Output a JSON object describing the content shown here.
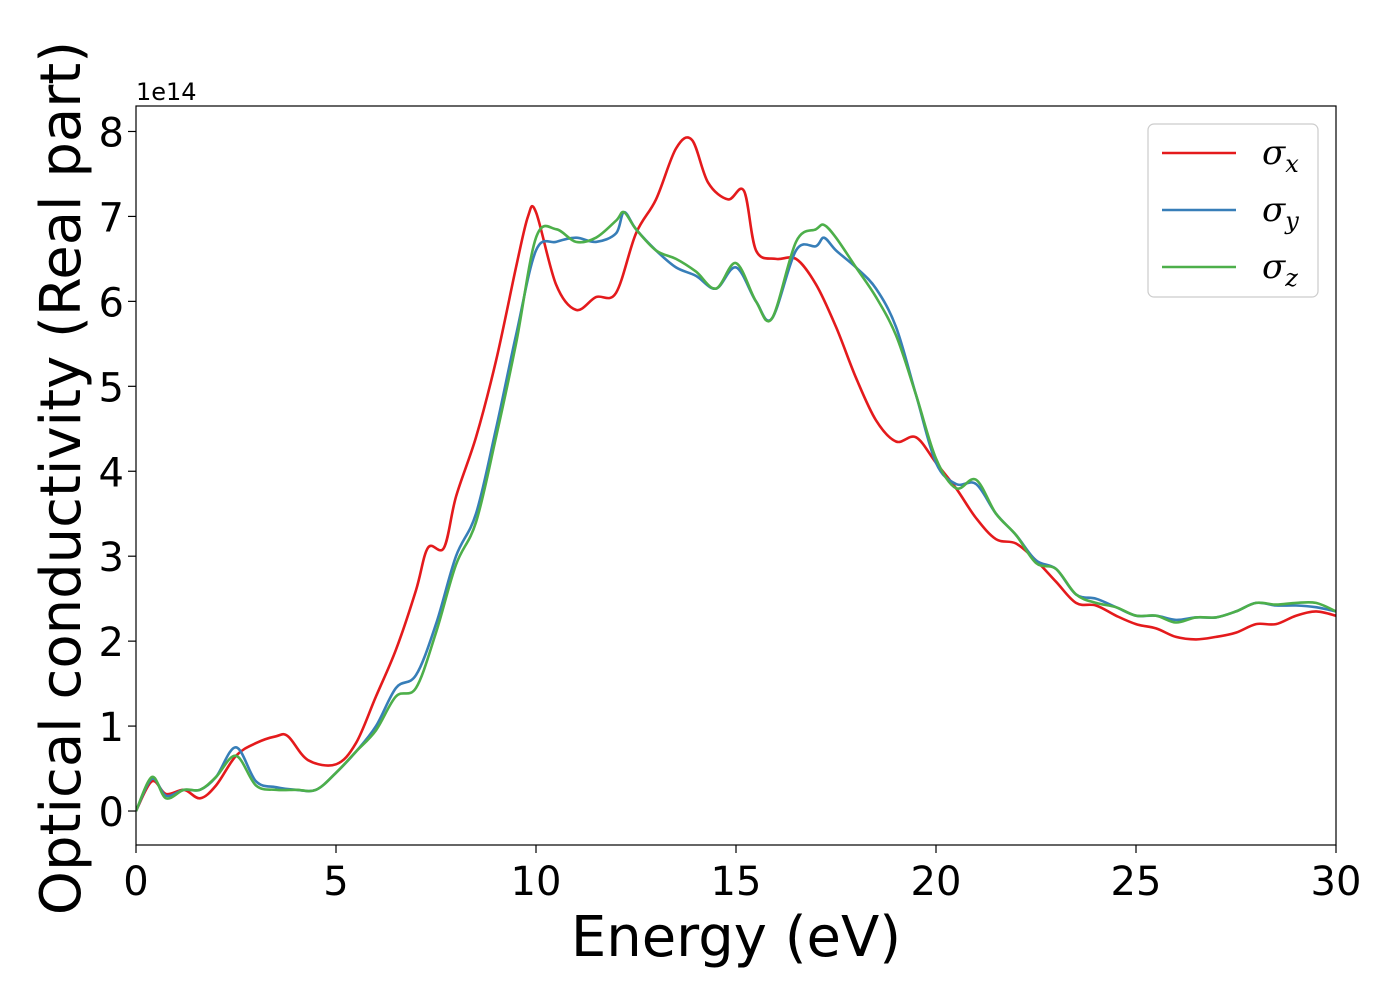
{
  "chart_data": {
    "type": "line",
    "xlabel": "Energy (eV)",
    "ylabel": "Optical conductivity (Real part)",
    "y_offset_label": "1e14",
    "y_scale": 100000000000000.0,
    "xlim": [
      0,
      30
    ],
    "ylim": [
      -0.4,
      8.3
    ],
    "x_ticks": [
      0,
      5,
      10,
      15,
      20,
      25,
      30
    ],
    "x_tick_labels": [
      "0",
      "5",
      "10",
      "15",
      "20",
      "25",
      "30"
    ],
    "y_ticks": [
      0,
      1,
      2,
      3,
      4,
      5,
      6,
      7,
      8
    ],
    "y_tick_labels": [
      "0",
      "1",
      "2",
      "3",
      "4",
      "5",
      "6",
      "7",
      "8"
    ],
    "grid": false,
    "legend_position": "top-right",
    "series": [
      {
        "name": "σx",
        "legend_base": "σ",
        "legend_sub": "x",
        "color": "#e41a1c",
        "x": [
          0,
          0.4,
          0.75,
          1.2,
          1.6,
          2.0,
          2.5,
          3.0,
          3.5,
          3.8,
          4.3,
          5.0,
          5.5,
          6.0,
          6.5,
          7.0,
          7.3,
          7.7,
          8.0,
          8.5,
          9.0,
          9.5,
          9.8,
          10.0,
          10.5,
          11.0,
          11.5,
          12.0,
          12.5,
          13.0,
          13.5,
          13.9,
          14.3,
          14.8,
          15.2,
          15.5,
          16.0,
          16.5,
          17.0,
          17.5,
          18.0,
          18.5,
          19.0,
          19.5,
          20.0,
          20.5,
          21.0,
          21.5,
          22.0,
          22.5,
          23.0,
          23.5,
          24.0,
          24.5,
          25.0,
          25.5,
          26.0,
          26.5,
          27.0,
          27.5,
          28.0,
          28.5,
          29.0,
          29.5,
          30.0
        ],
        "y": [
          0.0,
          0.35,
          0.2,
          0.25,
          0.15,
          0.3,
          0.65,
          0.8,
          0.88,
          0.88,
          0.6,
          0.55,
          0.8,
          1.35,
          1.9,
          2.6,
          3.1,
          3.1,
          3.7,
          4.4,
          5.3,
          6.4,
          7.0,
          7.05,
          6.2,
          5.9,
          6.05,
          6.1,
          6.8,
          7.2,
          7.8,
          7.9,
          7.4,
          7.2,
          7.3,
          6.6,
          6.5,
          6.5,
          6.2,
          5.7,
          5.1,
          4.6,
          4.35,
          4.4,
          4.1,
          3.8,
          3.45,
          3.2,
          3.15,
          2.95,
          2.7,
          2.45,
          2.42,
          2.3,
          2.2,
          2.15,
          2.05,
          2.02,
          2.05,
          2.1,
          2.2,
          2.2,
          2.3,
          2.35,
          2.3
        ]
      },
      {
        "name": "σy",
        "legend_base": "σ",
        "legend_sub": "y",
        "color": "#377eb8",
        "x": [
          0,
          0.4,
          0.75,
          1.2,
          1.6,
          2.0,
          2.5,
          3.0,
          3.5,
          4.0,
          4.5,
          5.0,
          5.5,
          6.0,
          6.5,
          7.0,
          7.5,
          8.0,
          8.5,
          9.0,
          9.5,
          10.0,
          10.5,
          11.0,
          11.5,
          12.0,
          12.2,
          12.5,
          13.0,
          13.5,
          14.0,
          14.5,
          15.0,
          15.5,
          15.9,
          16.5,
          17.0,
          17.2,
          17.5,
          18.0,
          18.5,
          19.0,
          19.5,
          20.0,
          20.5,
          21.0,
          21.5,
          22.0,
          22.5,
          23.0,
          23.5,
          24.0,
          24.5,
          25.0,
          25.5,
          26.0,
          26.5,
          27.0,
          27.5,
          28.0,
          28.5,
          29.0,
          29.5,
          30.0
        ],
        "y": [
          0.0,
          0.38,
          0.18,
          0.25,
          0.25,
          0.4,
          0.75,
          0.35,
          0.28,
          0.25,
          0.25,
          0.45,
          0.7,
          1.0,
          1.45,
          1.6,
          2.2,
          3.0,
          3.5,
          4.5,
          5.6,
          6.6,
          6.7,
          6.75,
          6.7,
          6.8,
          7.05,
          6.85,
          6.6,
          6.4,
          6.3,
          6.15,
          6.4,
          6.0,
          5.8,
          6.6,
          6.65,
          6.75,
          6.6,
          6.4,
          6.15,
          5.7,
          4.9,
          4.1,
          3.85,
          3.85,
          3.5,
          3.25,
          2.95,
          2.85,
          2.55,
          2.5,
          2.4,
          2.3,
          2.3,
          2.25,
          2.28,
          2.28,
          2.35,
          2.45,
          2.42,
          2.42,
          2.4,
          2.35
        ]
      },
      {
        "name": "σz",
        "legend_base": "σ",
        "legend_sub": "z",
        "color": "#4daf4a",
        "x": [
          0,
          0.4,
          0.75,
          1.2,
          1.6,
          2.0,
          2.5,
          3.0,
          3.5,
          4.0,
          4.5,
          5.0,
          5.5,
          6.0,
          6.5,
          7.0,
          7.5,
          8.0,
          8.5,
          9.0,
          9.5,
          10.0,
          10.5,
          11.0,
          11.5,
          12.0,
          12.2,
          12.5,
          13.0,
          13.5,
          14.0,
          14.5,
          15.0,
          15.5,
          15.9,
          16.5,
          17.0,
          17.2,
          17.5,
          18.0,
          18.5,
          19.0,
          19.5,
          20.0,
          20.5,
          21.0,
          21.5,
          22.0,
          22.5,
          23.0,
          23.5,
          24.0,
          24.5,
          25.0,
          25.5,
          26.0,
          26.5,
          27.0,
          27.5,
          28.0,
          28.5,
          29.0,
          29.5,
          30.0
        ],
        "y": [
          0.0,
          0.4,
          0.15,
          0.25,
          0.25,
          0.4,
          0.65,
          0.3,
          0.25,
          0.25,
          0.25,
          0.45,
          0.7,
          0.95,
          1.35,
          1.45,
          2.1,
          2.9,
          3.4,
          4.4,
          5.5,
          6.75,
          6.85,
          6.7,
          6.75,
          6.95,
          7.05,
          6.85,
          6.6,
          6.5,
          6.35,
          6.15,
          6.45,
          6.0,
          5.8,
          6.7,
          6.85,
          6.9,
          6.75,
          6.4,
          6.05,
          5.6,
          4.9,
          4.15,
          3.8,
          3.9,
          3.5,
          3.25,
          2.92,
          2.85,
          2.55,
          2.45,
          2.4,
          2.3,
          2.3,
          2.22,
          2.28,
          2.28,
          2.35,
          2.45,
          2.43,
          2.45,
          2.45,
          2.35
        ]
      }
    ]
  }
}
